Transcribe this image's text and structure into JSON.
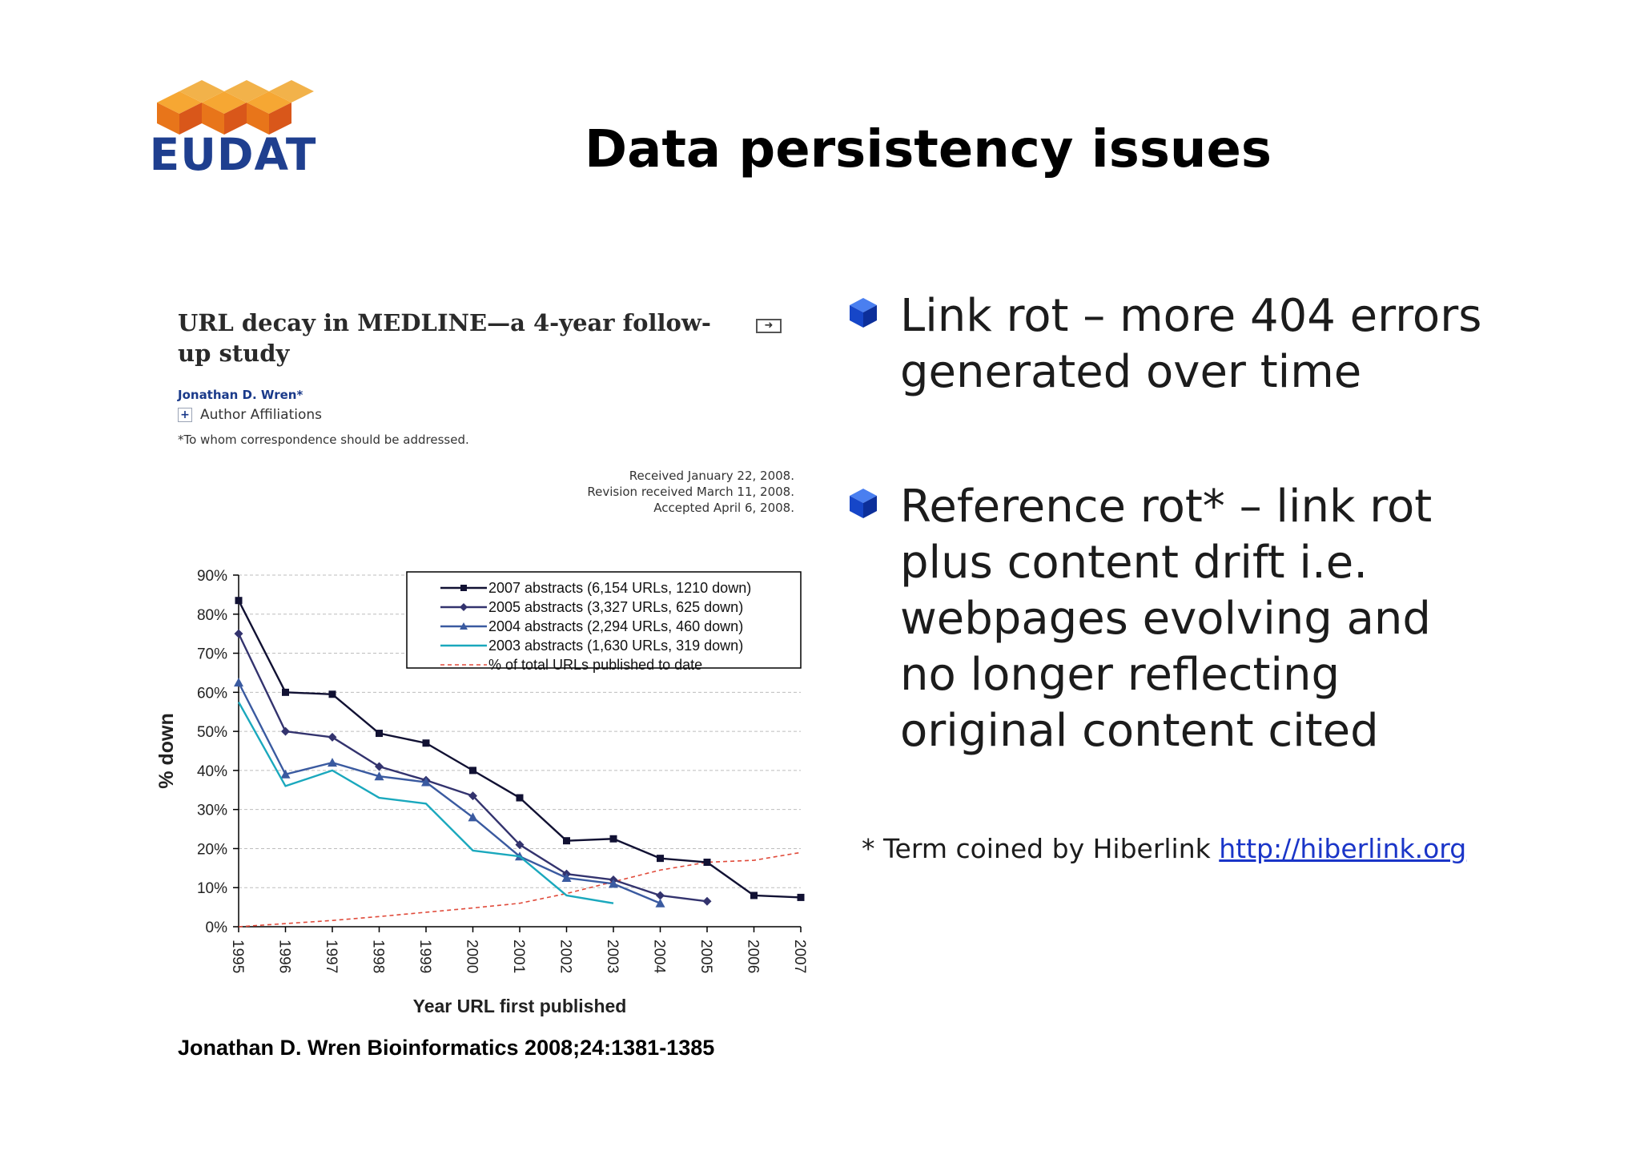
{
  "slide": {
    "title": "Data persistency issues",
    "logo_text": "EUDAT"
  },
  "article": {
    "title": "URL decay in MEDLINE—a 4-year follow-up study",
    "author": "Jonathan D. Wren*",
    "affiliations_label": "Author Affiliations",
    "correspondence_note": "*To whom correspondence should be addressed.",
    "received": "Received January 22, 2008.",
    "revision": "Revision received March 11, 2008.",
    "accepted": "Accepted April 6, 2008."
  },
  "citation": "Jonathan D. Wren Bioinformatics 2008;24:1381-1385",
  "bullets": [
    {
      "icon": "blue-cube-icon",
      "text": "Link rot – more 404 errors generated over time"
    },
    {
      "icon": "blue-cube-icon",
      "text": "Reference rot* – link rot plus content drift i.e. webpages evolving and no longer reflecting original content cited"
    }
  ],
  "footnote": {
    "text": "* Term coined by Hiberlink ",
    "link_text": "http://hiberlink.org"
  },
  "colors": {
    "logo_orange": "#f08a1c",
    "logo_blue": "#1f3f8f",
    "bullet_blue": "#1646c8",
    "link_blue": "#1a35c8"
  },
  "chart_data": {
    "type": "line",
    "xlabel": "Year URL first published",
    "ylabel": "% down",
    "x": [
      "1995",
      "1996",
      "1997",
      "1998",
      "1999",
      "2000",
      "2001",
      "2002",
      "2003",
      "2004",
      "2005",
      "2006",
      "2007"
    ],
    "ylim": [
      0,
      90
    ],
    "yticks": [
      0,
      10,
      20,
      30,
      40,
      50,
      60,
      70,
      80,
      90
    ],
    "ytick_labels": [
      "0%",
      "10%",
      "20%",
      "30%",
      "40%",
      "50%",
      "60%",
      "70%",
      "80%",
      "90%"
    ],
    "grid": true,
    "legend_position": "top-right",
    "series": [
      {
        "name": "2007 abstracts (6,154 URLs, 1210 down)",
        "color": "#111133",
        "marker": "square",
        "dash": false,
        "values": [
          83.5,
          60,
          59.5,
          49.5,
          47,
          40,
          33,
          22,
          22.5,
          17.5,
          16.5,
          8,
          7.5
        ]
      },
      {
        "name": "2005 abstracts (3,327 URLs, 625 down)",
        "color": "#33336e",
        "marker": "diamond",
        "dash": false,
        "values": [
          75,
          50,
          48.5,
          41,
          37.5,
          33.5,
          21,
          13.5,
          12,
          8,
          6.5,
          null,
          null
        ]
      },
      {
        "name": "2004 abstracts (2,294 URLs, 460 down)",
        "color": "#3a5aa0",
        "marker": "triangle",
        "dash": false,
        "values": [
          62.5,
          39,
          42,
          38.5,
          37,
          28,
          18,
          12.5,
          11,
          6,
          null,
          null,
          null
        ]
      },
      {
        "name": "2003 abstracts (1,630 URLs, 319 down)",
        "color": "#1aa8bd",
        "marker": "none",
        "dash": false,
        "values": [
          57.5,
          36,
          40,
          33,
          31.5,
          19.5,
          18,
          8,
          6,
          null,
          null,
          null,
          null
        ]
      },
      {
        "name": "% of total URLs published to date",
        "color": "#e04a3a",
        "marker": "none",
        "dash": true,
        "values": [
          0,
          0.8,
          1.6,
          2.6,
          3.7,
          4.8,
          6,
          8.5,
          11.5,
          14.5,
          16.5,
          17,
          19
        ]
      }
    ]
  }
}
